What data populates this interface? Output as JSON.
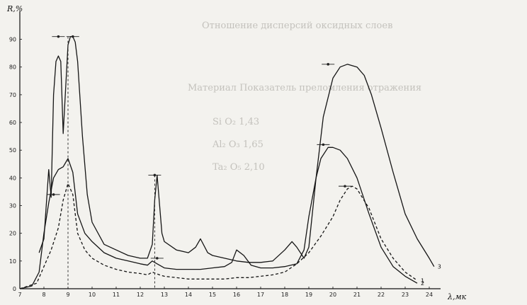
{
  "chart_data": {
    "type": "line",
    "ylabel": "R,%",
    "xlabel": "λ,мк",
    "xlim": [
      7,
      24
    ],
    "ylim": [
      0,
      95
    ],
    "x_ticks": [
      7,
      8,
      9,
      10,
      11,
      12,
      13,
      14,
      15,
      16,
      17,
      18,
      19,
      20,
      21,
      22,
      23,
      24
    ],
    "y_ticks": [
      0,
      10,
      20,
      30,
      40,
      50,
      60,
      70,
      80,
      90
    ],
    "y_tick_labels": [
      "0",
      "10",
      "20",
      "30",
      "40",
      "50",
      "60",
      "70",
      "80",
      "90"
    ],
    "grid": false,
    "series": [
      {
        "name": "1",
        "style": "dashed",
        "x": [
          7.0,
          7.7,
          8.0,
          8.3,
          8.6,
          8.8,
          9.0,
          9.2,
          9.4,
          9.7,
          10.0,
          10.5,
          11.0,
          11.5,
          12.0,
          12.3,
          12.5,
          12.8,
          13.0,
          13.5,
          14.0,
          14.5,
          15.0,
          15.5,
          16.0,
          16.5,
          17.0,
          17.5,
          18.0,
          18.5,
          19.0,
          19.5,
          20.0,
          20.3,
          20.6,
          20.8,
          21.0,
          21.5,
          22.0,
          22.5,
          23.0,
          23.5
        ],
        "y": [
          0,
          2,
          8,
          14,
          22,
          32,
          38,
          34,
          20,
          14,
          11,
          8.5,
          7,
          6,
          5.5,
          5,
          6,
          5,
          4.5,
          4,
          3.5,
          3.5,
          3.5,
          3.5,
          4,
          4,
          4.5,
          5,
          6,
          9,
          13,
          19,
          26,
          32,
          36,
          37,
          36,
          29,
          18,
          11,
          6,
          3
        ]
      },
      {
        "name": "2",
        "style": "solid",
        "x": [
          7.0,
          7.5,
          7.8,
          8.0,
          8.2,
          8.4,
          8.6,
          8.8,
          9.0,
          9.2,
          9.4,
          9.7,
          10.0,
          10.5,
          11.0,
          11.5,
          12.0,
          12.3,
          12.5,
          12.7,
          13.0,
          13.5,
          14.0,
          14.5,
          15.0,
          15.5,
          15.8,
          16.0,
          16.3,
          16.6,
          17.0,
          17.5,
          18.0,
          18.5,
          18.8,
          19.0,
          19.3,
          19.5,
          19.8,
          20.0,
          20.3,
          20.6,
          21.0,
          21.5,
          22.0,
          22.5,
          23.0,
          23.5
        ],
        "y": [
          0,
          1,
          6,
          20,
          31,
          40,
          43,
          44,
          47,
          42,
          27,
          20,
          17,
          13,
          11,
          10,
          9,
          8.5,
          10,
          9,
          7.5,
          7,
          7,
          7,
          7.5,
          8,
          9.5,
          14,
          12,
          8.5,
          7.5,
          7.5,
          8,
          9,
          14,
          26,
          40,
          47,
          51,
          51,
          50,
          47,
          40,
          27,
          15,
          8,
          4.5,
          2
        ]
      },
      {
        "name": "3",
        "style": "solid",
        "x": [
          7.8,
          8.0,
          8.2,
          8.3,
          8.4,
          8.5,
          8.6,
          8.7,
          8.8,
          8.9,
          9.0,
          9.1,
          9.2,
          9.3,
          9.4,
          9.6,
          9.8,
          10.0,
          10.5,
          11.0,
          11.5,
          12.0,
          12.3,
          12.5,
          12.6,
          12.7,
          12.9,
          13.0,
          13.5,
          14.0,
          14.3,
          14.5,
          14.8,
          15.0,
          15.5,
          16.0,
          16.5,
          17.0,
          17.5,
          18.0,
          18.3,
          18.5,
          18.8,
          19.0,
          19.3,
          19.6,
          20.0,
          20.3,
          20.6,
          21.0,
          21.3,
          21.6,
          22.0,
          22.5,
          23.0,
          23.5,
          24.0,
          24.2
        ],
        "y": [
          13,
          18,
          43,
          33,
          70,
          82,
          84,
          82,
          56,
          72,
          88,
          91,
          91,
          89,
          82,
          55,
          34,
          24,
          16,
          14,
          12,
          11,
          11,
          16,
          32,
          41,
          20,
          17,
          14,
          13,
          15,
          18,
          13,
          12,
          11,
          10,
          9.5,
          9.5,
          10,
          14,
          17,
          15,
          11,
          15,
          40,
          62,
          76,
          80,
          81,
          80,
          77,
          70,
          58,
          42,
          27,
          18,
          11,
          8
        ]
      }
    ],
    "curve_labels": [
      "1",
      "2",
      "3"
    ]
  },
  "background_text": {
    "heading": "Отношение дисперсий оксидных слоев",
    "table_header": "Материал   Показатель преломления отражения",
    "row1": "Si O₂   1,43",
    "row2": "Al₂ O₃   1,65",
    "row3": "Ta₂ O₅   2,10"
  }
}
